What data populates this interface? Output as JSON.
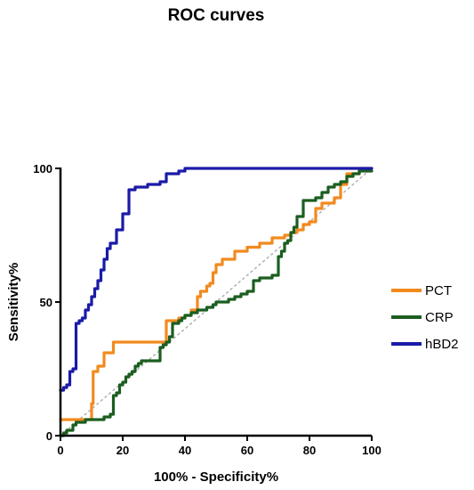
{
  "chart_data": {
    "type": "line",
    "title": "ROC curves",
    "xlabel": "100% - Specificity%",
    "ylabel": "Sensitivity%",
    "xlim": [
      0,
      100
    ],
    "ylim": [
      0,
      100
    ],
    "xticks": [
      0,
      20,
      40,
      60,
      80,
      100
    ],
    "yticks": [
      0,
      50,
      100
    ],
    "grid": false,
    "legend_position": "right",
    "reference_line": {
      "style": "dotted",
      "color": "#b0b0b0",
      "x": [
        0,
        100
      ],
      "y": [
        0,
        100
      ]
    },
    "series": [
      {
        "name": "PCT",
        "color": "#f28a1e",
        "x": [
          0,
          3,
          10,
          10.5,
          12,
          14,
          17,
          24,
          34,
          38,
          40,
          42,
          44,
          45,
          47,
          48,
          49,
          50,
          52,
          56,
          60,
          64,
          68,
          72,
          74,
          76,
          78,
          80,
          82,
          84,
          88,
          90,
          92,
          96,
          100
        ],
        "y": [
          6,
          6,
          12,
          24,
          26,
          31,
          35,
          35,
          43,
          44,
          45,
          47,
          52,
          54,
          56,
          57,
          61,
          64,
          66,
          69,
          70.5,
          72,
          74,
          75,
          76,
          77,
          79,
          80,
          85,
          87,
          89,
          94,
          98,
          100,
          100
        ]
      },
      {
        "name": "CRP",
        "color": "#1b5e20",
        "x": [
          0,
          1,
          2,
          3,
          4,
          5,
          8,
          12,
          14,
          16,
          17,
          18,
          19,
          20,
          21,
          22,
          23,
          24,
          25,
          26,
          30,
          32,
          33,
          34,
          35,
          36,
          38,
          39,
          40,
          42,
          44,
          46,
          47,
          49,
          50,
          52,
          54,
          56,
          58,
          60,
          62,
          64,
          66,
          68,
          70,
          71,
          72,
          73,
          74,
          75,
          76,
          78,
          80,
          82,
          84,
          86,
          88,
          90,
          92,
          94,
          96,
          98,
          100
        ],
        "y": [
          0,
          1,
          2,
          2,
          4,
          5,
          6,
          6,
          7,
          8,
          15,
          16,
          19,
          20,
          22,
          23,
          24,
          26,
          27,
          28,
          28,
          33,
          34,
          35,
          37,
          42,
          43,
          44,
          45,
          46,
          47,
          47,
          48,
          49,
          50,
          50,
          51,
          52,
          53,
          54,
          58,
          59,
          59,
          60,
          67,
          69,
          72,
          73,
          76,
          78,
          82,
          88,
          88,
          89,
          91,
          93,
          94,
          95,
          97,
          98,
          99,
          99,
          99
        ]
      },
      {
        "name": "hBD2",
        "color": "#1a1aa8",
        "x": [
          0,
          1,
          2,
          3,
          4,
          5,
          6,
          7,
          8,
          9,
          10,
          11,
          12,
          13,
          14,
          15,
          16,
          18,
          20,
          22,
          24,
          26,
          28,
          30,
          32,
          34,
          36,
          38,
          40,
          42,
          100
        ],
        "y": [
          17,
          18,
          19,
          24,
          25,
          42,
          43,
          44,
          47,
          49,
          52,
          55,
          58,
          62,
          66,
          70,
          72,
          77,
          83,
          92,
          93,
          93,
          94,
          94,
          95,
          98,
          98,
          99,
          100,
          100,
          100
        ]
      }
    ]
  }
}
